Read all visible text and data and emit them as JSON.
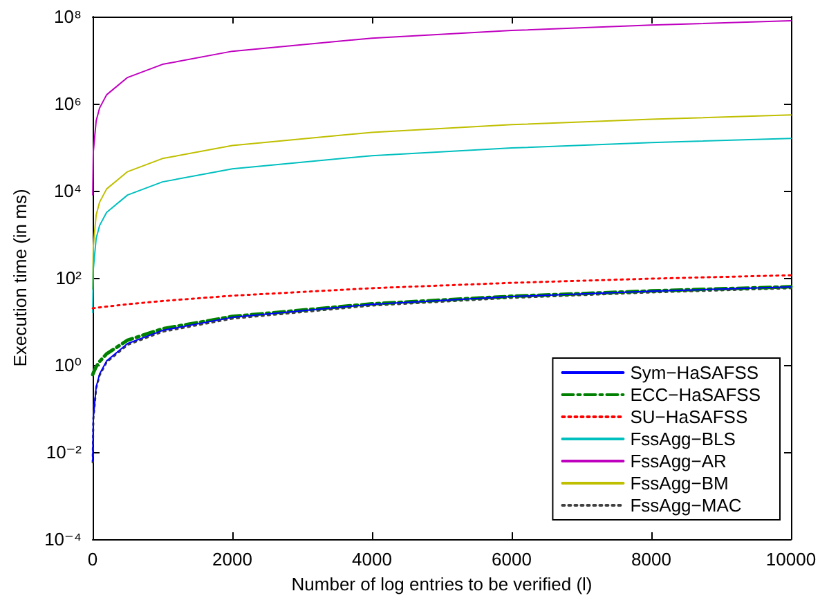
{
  "chart_data": {
    "type": "line",
    "xlabel": "Number of log entries to be verified (l)",
    "ylabel": "Execution time (in ms)",
    "x": [
      1,
      10,
      50,
      100,
      200,
      500,
      1000,
      2000,
      4000,
      6000,
      8000,
      10000
    ],
    "xlim": [
      0,
      10000
    ],
    "xticks": [
      0,
      2000,
      4000,
      6000,
      8000,
      10000
    ],
    "ylim": [
      0.0001,
      100000000
    ],
    "log": "y",
    "yticks": [
      {
        "value": 0.0001,
        "label": "10⁻⁴"
      },
      {
        "value": 0.01,
        "label": "10⁻²"
      },
      {
        "value": 1,
        "label": "10⁰"
      },
      {
        "value": 100,
        "label": "10²"
      },
      {
        "value": 10000,
        "label": "10⁴"
      },
      {
        "value": 1000000,
        "label": "10⁶"
      },
      {
        "value": 100000000,
        "label": "10⁸"
      }
    ],
    "grid": false,
    "legend": "bottom right",
    "marker": "none",
    "series": [
      {
        "name": "Sym−HaSAFSS",
        "color": "#0000ff",
        "line_style": "solid",
        "values": [
          0.0062,
          0.062,
          0.31,
          0.62,
          1.24,
          3.1,
          6.2,
          12.4,
          24.8,
          37.2,
          49.6,
          62
        ]
      },
      {
        "name": "ECC−HaSAFSS",
        "color": "#008000",
        "line_style": "dashed",
        "values": [
          0.6,
          0.66,
          0.91,
          1.2,
          1.8,
          3.7,
          6.8,
          13,
          25.4,
          37.8,
          50.2,
          62.6
        ]
      },
      {
        "name": "SU−HaSAFSS",
        "color": "#ff0000",
        "line_style": "dotted",
        "values": [
          20,
          20.1,
          20.5,
          21,
          21.9,
          24.8,
          29.5,
          39,
          58,
          77,
          96,
          115
        ]
      },
      {
        "name": "FssAgg−BLS",
        "color": "#00bfbf",
        "line_style": "solid",
        "values": [
          16,
          160,
          800,
          1600,
          3200,
          8000,
          16000,
          32000,
          64000,
          96000,
          128000,
          160000
        ]
      },
      {
        "name": "FssAgg−AR",
        "color": "#bf00bf",
        "line_style": "solid",
        "values": [
          8000,
          80000,
          400000,
          800000,
          1600000,
          4000000,
          8000000,
          16000000,
          32000000,
          48000000,
          64000000,
          80000000
        ]
      },
      {
        "name": "FssAgg−BM",
        "color": "#bfbf00",
        "line_style": "solid",
        "values": [
          55,
          550,
          2750,
          5500,
          11000,
          27500,
          55000,
          110000,
          220000,
          330000,
          440000,
          550000
        ]
      },
      {
        "name": "FssAgg−MAC",
        "color": "#404040",
        "line_style": "dotted",
        "values": [
          0.0058,
          0.058,
          0.29,
          0.58,
          1.16,
          2.9,
          5.8,
          11.6,
          23.2,
          34.8,
          46.4,
          58
        ]
      }
    ]
  }
}
